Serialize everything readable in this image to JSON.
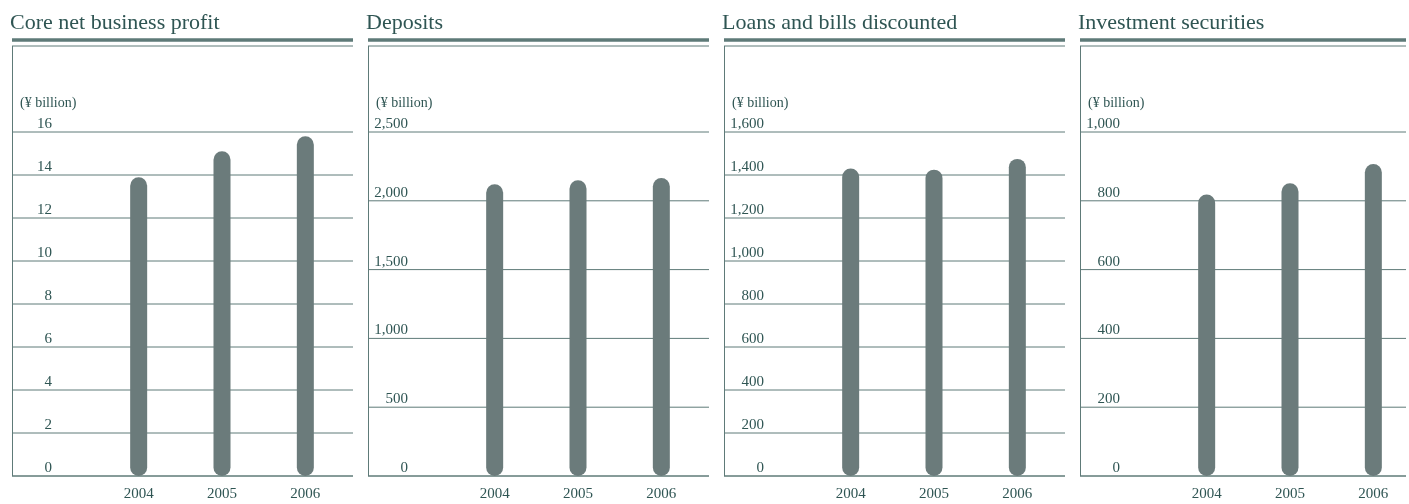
{
  "chart_data": [
    {
      "type": "bar",
      "title": "Core net business profit",
      "ylabel": "(¥ billion)",
      "categories": [
        "2004",
        "2005",
        "2006"
      ],
      "values": [
        13.9,
        15.1,
        15.8
      ],
      "color": "#6b7b7b",
      "ylim": [
        0,
        16
      ],
      "yticks": [
        0,
        2,
        4,
        6,
        8,
        10,
        12,
        14,
        16
      ],
      "grid": "y"
    },
    {
      "type": "bar",
      "title": "Deposits",
      "ylabel": "(¥ billion)",
      "categories": [
        "2004",
        "2005",
        "2006"
      ],
      "values": [
        2120,
        2150,
        2165
      ],
      "color": "#6b7b7b",
      "ylim": [
        0,
        2500
      ],
      "yticks": [
        0,
        500,
        {
          "value": 1000,
          "label": "1,000"
        },
        {
          "value": 1500,
          "label": "1,500"
        },
        {
          "value": 2000,
          "label": "2,000"
        },
        {
          "value": 2500,
          "label": "2,500"
        }
      ],
      "grid": "y"
    },
    {
      "type": "bar",
      "title": "Loans and bills discounted",
      "ylabel": "(¥ billion)",
      "categories": [
        "2004",
        "2005",
        "2006"
      ],
      "values": [
        1430,
        1425,
        1475
      ],
      "color": "#6b7b7b",
      "ylim": [
        0,
        1600
      ],
      "yticks": [
        0,
        200,
        400,
        600,
        800,
        {
          "value": 1000,
          "label": "1,000"
        },
        {
          "value": 1200,
          "label": "1,200"
        },
        {
          "value": 1400,
          "label": "1,400"
        },
        {
          "value": 1600,
          "label": "1,600"
        }
      ],
      "grid": "y"
    },
    {
      "type": "bar",
      "title": "Investment securities",
      "ylabel": "(¥ billion)",
      "categories": [
        "2004",
        "2005",
        "2006"
      ],
      "values": [
        818,
        851,
        907
      ],
      "color": "#6b7b7b",
      "ylim": [
        0,
        1000
      ],
      "yticks": [
        0,
        200,
        400,
        600,
        800,
        {
          "value": 1000,
          "label": "1,000"
        }
      ],
      "grid": "y"
    }
  ]
}
